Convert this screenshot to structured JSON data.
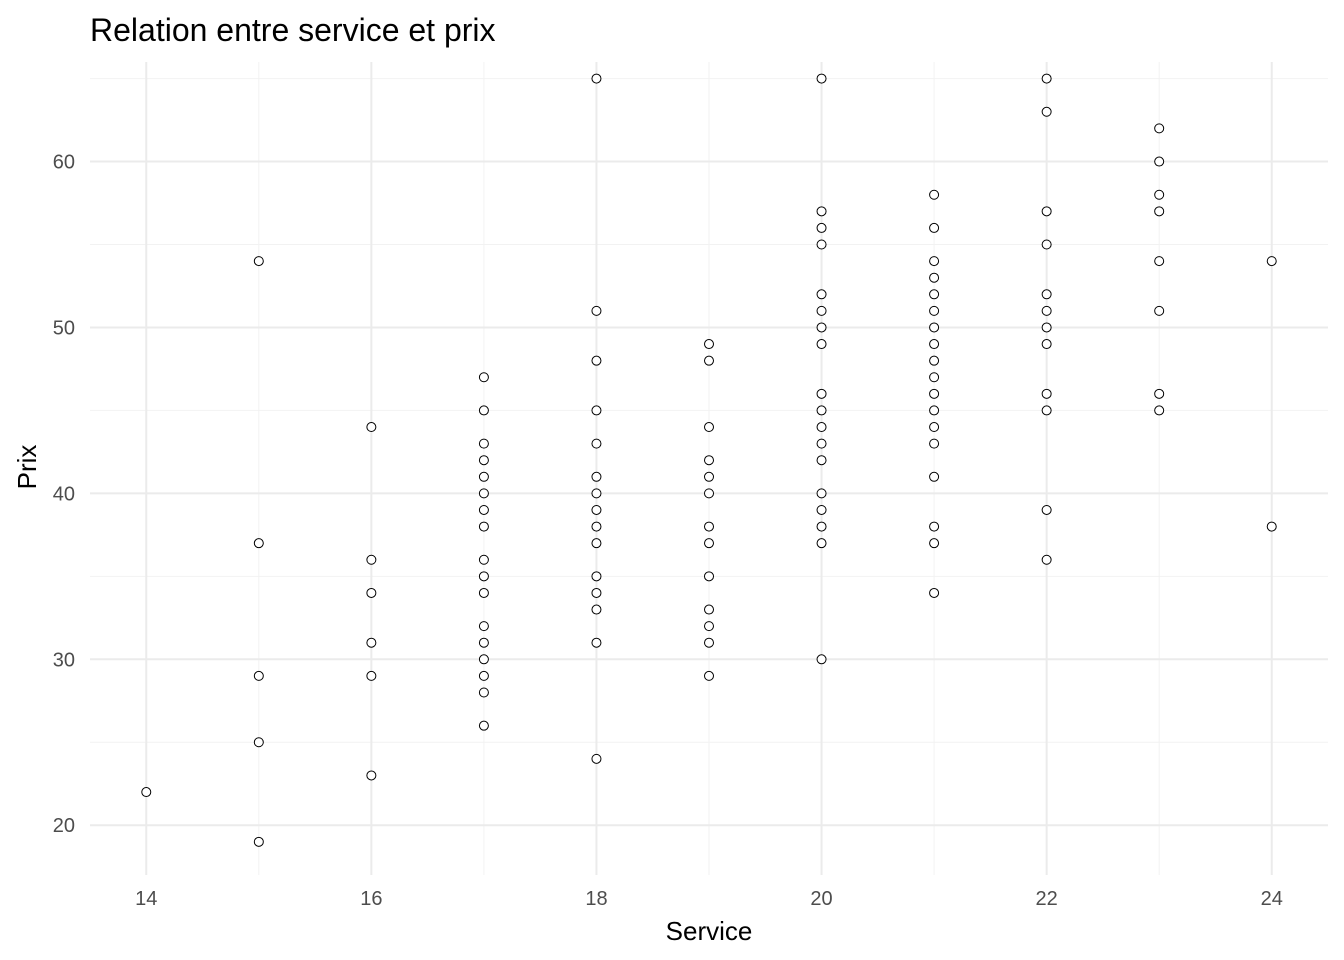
{
  "chart_data": {
    "type": "scatter",
    "title": "Relation entre service et prix",
    "xlabel": "Service",
    "ylabel": "Prix",
    "xlim": [
      13.5,
      24.5
    ],
    "ylim": [
      17,
      66
    ],
    "x_ticks": [
      14,
      16,
      18,
      20,
      22,
      24
    ],
    "y_ticks": [
      20,
      30,
      40,
      50,
      60
    ],
    "x_minor": [
      15,
      17,
      19,
      21,
      23
    ],
    "y_minor": [
      25,
      35,
      45,
      55,
      65
    ],
    "grid": true,
    "legend": "none",
    "point_style": "open circle",
    "points": [
      [
        14,
        22
      ],
      [
        15,
        54
      ],
      [
        15,
        37
      ],
      [
        15,
        29
      ],
      [
        15,
        25
      ],
      [
        15,
        19
      ],
      [
        16,
        44
      ],
      [
        16,
        36
      ],
      [
        16,
        34
      ],
      [
        16,
        31
      ],
      [
        16,
        29
      ],
      [
        16,
        23
      ],
      [
        17,
        47
      ],
      [
        17,
        45
      ],
      [
        17,
        43
      ],
      [
        17,
        42
      ],
      [
        17,
        41
      ],
      [
        17,
        40
      ],
      [
        17,
        39
      ],
      [
        17,
        38
      ],
      [
        17,
        36
      ],
      [
        17,
        35
      ],
      [
        17,
        34
      ],
      [
        17,
        32
      ],
      [
        17,
        31
      ],
      [
        17,
        30
      ],
      [
        17,
        29
      ],
      [
        17,
        28
      ],
      [
        17,
        26
      ],
      [
        18,
        65
      ],
      [
        18,
        51
      ],
      [
        18,
        48
      ],
      [
        18,
        45
      ],
      [
        18,
        43
      ],
      [
        18,
        41
      ],
      [
        18,
        40
      ],
      [
        18,
        39
      ],
      [
        18,
        38
      ],
      [
        18,
        37
      ],
      [
        18,
        35
      ],
      [
        18,
        34
      ],
      [
        18,
        33
      ],
      [
        18,
        31
      ],
      [
        18,
        24
      ],
      [
        19,
        49
      ],
      [
        19,
        48
      ],
      [
        19,
        44
      ],
      [
        19,
        42
      ],
      [
        19,
        41
      ],
      [
        19,
        40
      ],
      [
        19,
        38
      ],
      [
        19,
        37
      ],
      [
        19,
        35
      ],
      [
        19,
        33
      ],
      [
        19,
        32
      ],
      [
        19,
        31
      ],
      [
        19,
        29
      ],
      [
        20,
        65
      ],
      [
        20,
        57
      ],
      [
        20,
        56
      ],
      [
        20,
        55
      ],
      [
        20,
        52
      ],
      [
        20,
        51
      ],
      [
        20,
        50
      ],
      [
        20,
        49
      ],
      [
        20,
        46
      ],
      [
        20,
        45
      ],
      [
        20,
        44
      ],
      [
        20,
        43
      ],
      [
        20,
        42
      ],
      [
        20,
        40
      ],
      [
        20,
        39
      ],
      [
        20,
        38
      ],
      [
        20,
        37
      ],
      [
        20,
        30
      ],
      [
        21,
        58
      ],
      [
        21,
        56
      ],
      [
        21,
        54
      ],
      [
        21,
        53
      ],
      [
        21,
        52
      ],
      [
        21,
        51
      ],
      [
        21,
        50
      ],
      [
        21,
        49
      ],
      [
        21,
        48
      ],
      [
        21,
        47
      ],
      [
        21,
        46
      ],
      [
        21,
        45
      ],
      [
        21,
        44
      ],
      [
        21,
        43
      ],
      [
        21,
        41
      ],
      [
        21,
        38
      ],
      [
        21,
        37
      ],
      [
        21,
        34
      ],
      [
        22,
        65
      ],
      [
        22,
        63
      ],
      [
        22,
        57
      ],
      [
        22,
        55
      ],
      [
        22,
        52
      ],
      [
        22,
        51
      ],
      [
        22,
        50
      ],
      [
        22,
        49
      ],
      [
        22,
        46
      ],
      [
        22,
        45
      ],
      [
        22,
        39
      ],
      [
        22,
        36
      ],
      [
        23,
        62
      ],
      [
        23,
        60
      ],
      [
        23,
        58
      ],
      [
        23,
        57
      ],
      [
        23,
        54
      ],
      [
        23,
        51
      ],
      [
        23,
        46
      ],
      [
        23,
        45
      ],
      [
        24,
        54
      ],
      [
        24,
        38
      ]
    ]
  }
}
